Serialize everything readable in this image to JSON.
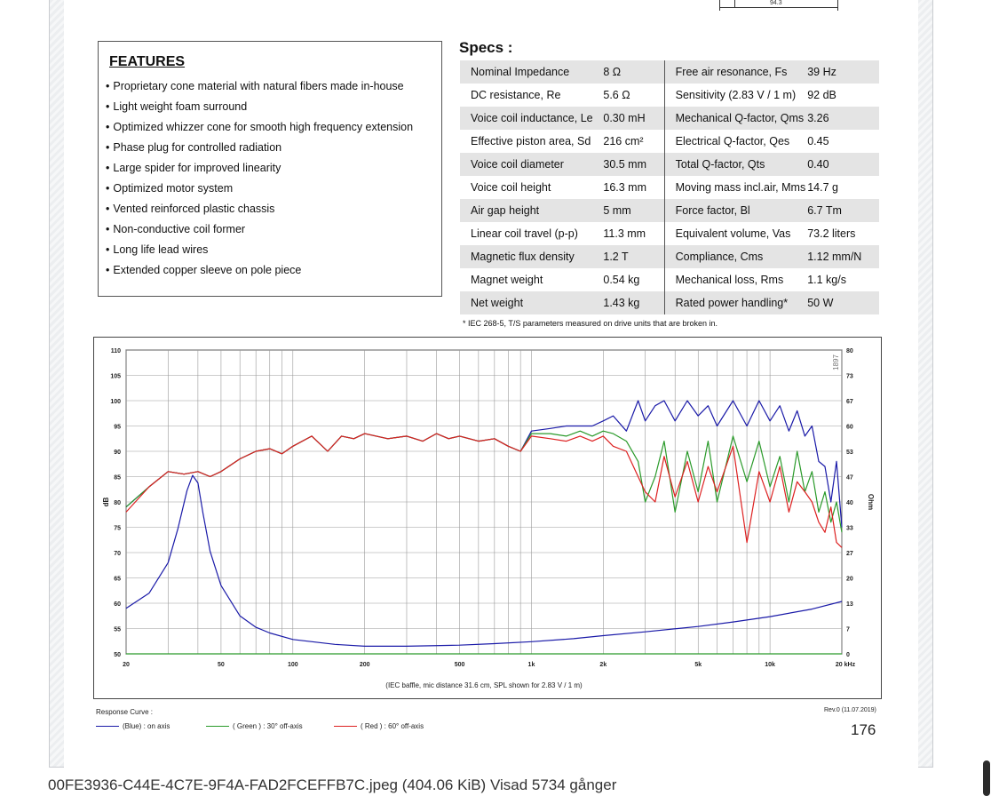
{
  "drawing": {
    "dimension": "94.3"
  },
  "features": {
    "title": "FEATURES",
    "items": [
      "Proprietary cone material with natural fibers made in-house",
      "Light weight foam surround",
      "Optimized whizzer cone for smooth high frequency extension",
      "Phase plug for controlled radiation",
      "Large spider for improved linearity",
      "Optimized motor system",
      "Vented reinforced plastic chassis",
      "Non-conductive coil former",
      "Long life lead wires",
      "Extended copper sleeve on pole piece"
    ]
  },
  "specs": {
    "title": "Specs :",
    "rows": [
      [
        "Nominal Impedance",
        "8 Ω",
        "Free air resonance, Fs",
        "39 Hz"
      ],
      [
        "DC resistance, Re",
        "5.6 Ω",
        "Sensitivity (2.83 V / 1 m)",
        "92 dB"
      ],
      [
        "Voice coil inductance, Le",
        "0.30 mH",
        "Mechanical Q-factor, Qms",
        "3.26"
      ],
      [
        "Effective piston area, Sd",
        "216 cm²",
        "Electrical Q-factor, Qes",
        "0.45"
      ],
      [
        "Voice coil diameter",
        "30.5 mm",
        "Total Q-factor, Qts",
        "0.40"
      ],
      [
        "Voice coil height",
        "16.3 mm",
        "Moving mass incl.air, Mms",
        "14.7 g"
      ],
      [
        "Air gap height",
        "5 mm",
        "Force factor,  Bl",
        "6.7 Tm"
      ],
      [
        "Linear coil travel (p-p)",
        "11.3 mm",
        "Equivalent volume, Vas",
        "73.2 liters"
      ],
      [
        "Magnetic flux density",
        "1.2 T",
        "Compliance, Cms",
        "1.12 mm/N"
      ],
      [
        "Magnet weight",
        "0.54 kg",
        "Mechanical loss, Rms",
        "1.1 kg/s"
      ],
      [
        "Net weight",
        "1.43 kg",
        "Rated power handling*",
        "50 W"
      ]
    ],
    "note": "* IEC 268-5, T/S parameters measured on drive units that are broken in."
  },
  "chart_data": {
    "type": "line",
    "xscale": "log",
    "xlim": [
      20,
      20000
    ],
    "ylim": [
      50,
      110
    ],
    "y2lim": [
      0,
      80
    ],
    "ylabel": "dB",
    "y2label": "Ohm",
    "xlabel": "(IEC baffle, mic distance 31.6 cm, SPL shown for 2.83 V / 1 m)",
    "grid": true,
    "x_ticks": [
      "20",
      "50",
      "100",
      "200",
      "500",
      "1k",
      "2k",
      "5k",
      "10k",
      "20 kHz"
    ],
    "y_ticks": [
      "50",
      "55",
      "60",
      "65",
      "70",
      "75",
      "80",
      "85",
      "90",
      "95",
      "100",
      "105",
      "110"
    ],
    "y2_ticks": [
      "0",
      "7",
      "13",
      "20",
      "27",
      "33",
      "40",
      "47",
      "53",
      "60",
      "67",
      "73",
      "80"
    ],
    "series": [
      {
        "name": "(Blue) : on axis",
        "color": "#1a1aa8",
        "axis": "left",
        "x": [
          20,
          25,
          30,
          35,
          40,
          45,
          50,
          60,
          70,
          80,
          90,
          100,
          120,
          140,
          160,
          180,
          200,
          250,
          300,
          350,
          400,
          450,
          500,
          600,
          700,
          800,
          900,
          1000,
          1200,
          1400,
          1600,
          1800,
          2000,
          2200,
          2500,
          2800,
          3000,
          3300,
          3600,
          4000,
          4500,
          5000,
          5500,
          6000,
          7000,
          8000,
          9000,
          10000,
          11000,
          12000,
          13000,
          14000,
          15000,
          16000,
          17000,
          18000,
          19000,
          20000
        ],
        "y": [
          79,
          83,
          86,
          85.5,
          86,
          85,
          86,
          88.5,
          90,
          90.5,
          89.5,
          91,
          93,
          90,
          93,
          92.5,
          93.5,
          92.5,
          93,
          92,
          93.5,
          92.5,
          93,
          92,
          92.5,
          91,
          90,
          94,
          94.5,
          95,
          95,
          95,
          96,
          97,
          94,
          100,
          96,
          99,
          100,
          96,
          100,
          97,
          99,
          95,
          100,
          95,
          100,
          96,
          99,
          94,
          98,
          93,
          95,
          88,
          87,
          80,
          88,
          75
        ]
      },
      {
        "name": "( Green ) : 30° off-axis",
        "color": "#2a9a2a",
        "axis": "left",
        "x": [
          20,
          25,
          30,
          35,
          40,
          45,
          50,
          60,
          70,
          80,
          90,
          100,
          120,
          140,
          160,
          180,
          200,
          250,
          300,
          350,
          400,
          450,
          500,
          600,
          700,
          800,
          900,
          1000,
          1200,
          1400,
          1600,
          1800,
          2000,
          2200,
          2500,
          2800,
          3000,
          3300,
          3600,
          4000,
          4500,
          5000,
          5500,
          6000,
          7000,
          8000,
          9000,
          10000,
          11000,
          12000,
          13000,
          14000,
          15000,
          16000,
          17000,
          18000,
          19000,
          20000
        ],
        "y": [
          79,
          83,
          86,
          85.5,
          86,
          85,
          86,
          88.5,
          90,
          90.5,
          89.5,
          91,
          93,
          90,
          93,
          92.5,
          93.5,
          92.5,
          93,
          92,
          93.5,
          92.5,
          93,
          92,
          92.5,
          91,
          90,
          93.5,
          93.5,
          93,
          94,
          93,
          94,
          93.5,
          92,
          88,
          80,
          85,
          92,
          78,
          90,
          82,
          92,
          80,
          93,
          84,
          92,
          83,
          89,
          80,
          90,
          82,
          86,
          78,
          82,
          76,
          80,
          74
        ]
      },
      {
        "name": "( Red ) : 60° off-axis",
        "color": "#dd2020",
        "axis": "left",
        "x": [
          20,
          25,
          30,
          35,
          40,
          45,
          50,
          60,
          70,
          80,
          90,
          100,
          120,
          140,
          160,
          180,
          200,
          250,
          300,
          350,
          400,
          450,
          500,
          600,
          700,
          800,
          900,
          1000,
          1200,
          1400,
          1600,
          1800,
          2000,
          2200,
          2500,
          2800,
          3000,
          3300,
          3600,
          4000,
          4500,
          5000,
          5500,
          6000,
          7000,
          8000,
          9000,
          10000,
          11000,
          12000,
          13000,
          14000,
          15000,
          16000,
          17000,
          18000,
          19000,
          20000
        ],
        "y": [
          78,
          83,
          86,
          85.5,
          86,
          85,
          86,
          88.5,
          90,
          90.5,
          89.5,
          91,
          93,
          90,
          93,
          92.5,
          93.5,
          92.5,
          93,
          92,
          93.5,
          92.5,
          93,
          92,
          92.5,
          91,
          90,
          93,
          92.5,
          92,
          93,
          92,
          93,
          91,
          90,
          85,
          82,
          80,
          89,
          81,
          88,
          80,
          87,
          82,
          91,
          72,
          86,
          80,
          87,
          78,
          84,
          82,
          80,
          76,
          74,
          79,
          72,
          71
        ]
      },
      {
        "name": "Impedance",
        "color": "#1a1aa8",
        "axis": "right",
        "x": [
          20,
          25,
          30,
          33,
          36,
          38,
          40,
          42,
          45,
          50,
          60,
          70,
          80,
          100,
          150,
          200,
          300,
          500,
          700,
          1000,
          1500,
          2000,
          3000,
          5000,
          7000,
          10000,
          15000,
          20000
        ],
        "y": [
          12,
          16,
          24,
          33,
          43,
          47,
          45,
          37,
          27,
          18,
          10,
          7,
          5.5,
          3.8,
          2.5,
          2,
          2,
          2.3,
          2.7,
          3.2,
          4,
          4.8,
          5.8,
          7.2,
          8.4,
          9.8,
          11.8,
          13.8
        ]
      },
      {
        "name": "baseline",
        "color": "#2a9a2a",
        "axis": "left",
        "x": [
          20,
          20000
        ],
        "y": [
          50,
          50
        ]
      }
    ]
  },
  "legend": {
    "title": "Response Curve :",
    "items": [
      {
        "label": "(Blue) : on axis",
        "color": "#1a1aa8"
      },
      {
        "label": "( Green ) : 30° off-axis",
        "color": "#2a9a2a"
      },
      {
        "label": "( Red ) : 60° off-axis",
        "color": "#dd2020"
      }
    ]
  },
  "footer": {
    "revision": "Rev.0 (11.07.2019)",
    "page_number": "176"
  },
  "chart_watermark": "1897",
  "caption": "00FE3936-C44E-4C7E-9F4A-FAD2FCEFFB7C.jpeg (404.06 KiB) Visad 5734 gånger"
}
